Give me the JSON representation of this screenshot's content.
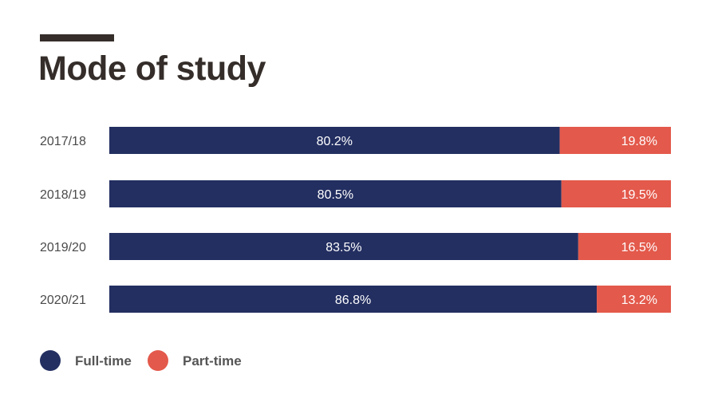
{
  "chart_data": {
    "type": "bar",
    "orientation": "horizontal",
    "stacked": true,
    "title": "Mode of study",
    "categories": [
      "2017/18",
      "2018/19",
      "2019/20",
      "2020/21"
    ],
    "series": [
      {
        "name": "Full-time",
        "color": "#232f61",
        "values": [
          80.2,
          80.5,
          83.5,
          86.8
        ],
        "labels": [
          "80.2%",
          "80.5%",
          "83.5%",
          "86.8%"
        ]
      },
      {
        "name": "Part-time",
        "color": "#e3594b",
        "values": [
          19.8,
          19.5,
          16.5,
          13.2
        ],
        "labels": [
          "19.8%",
          "19.5%",
          "16.5%",
          "13.2%"
        ]
      }
    ],
    "xlim": [
      0,
      100
    ],
    "legend": "bottom-left",
    "grid": false
  }
}
